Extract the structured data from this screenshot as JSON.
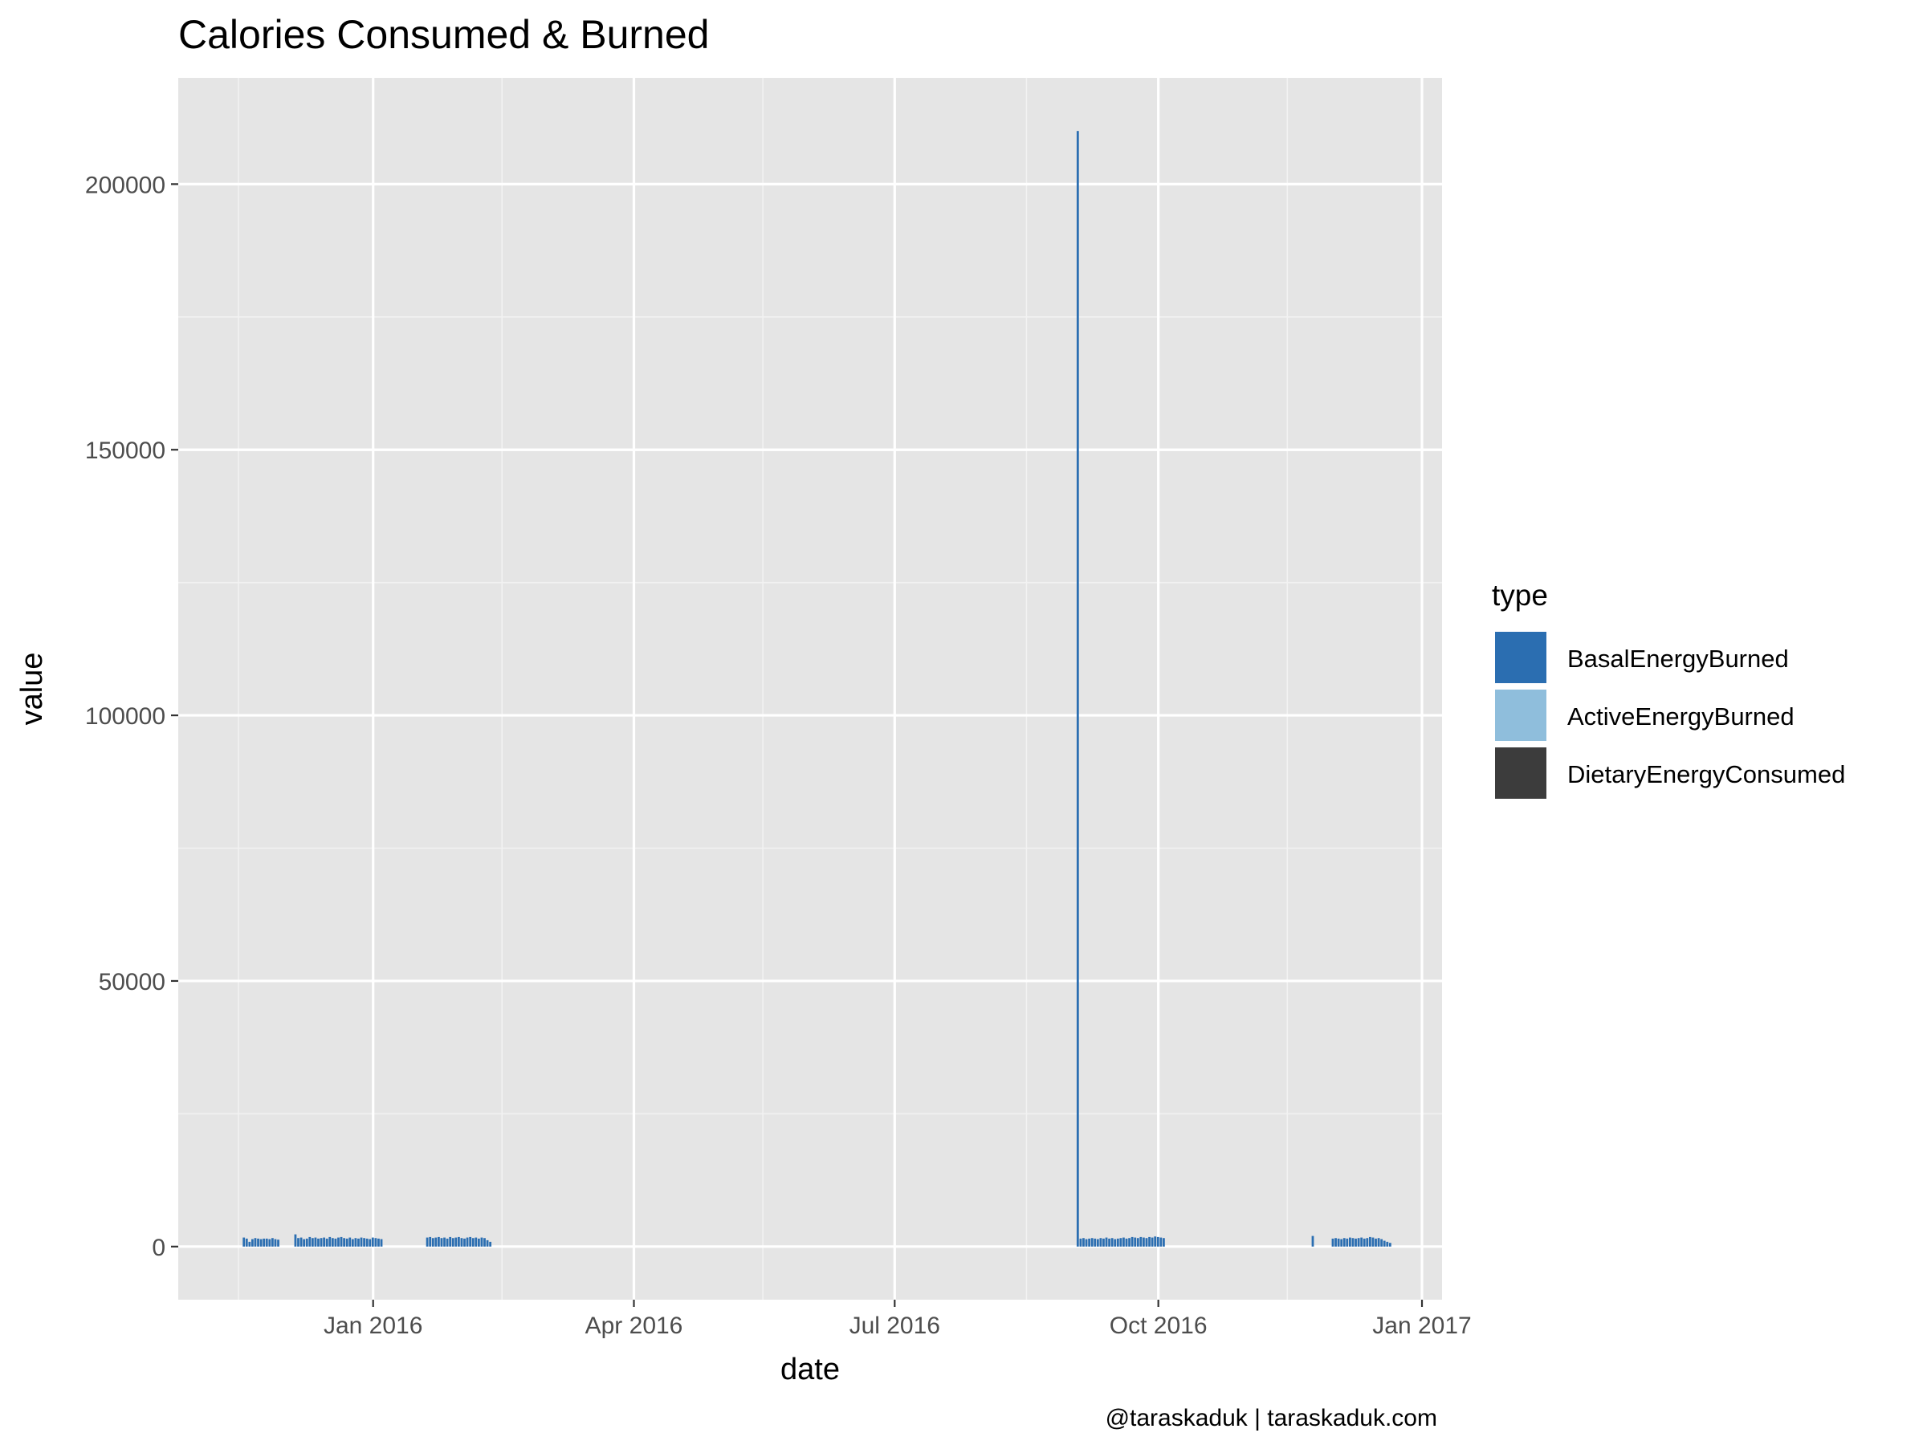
{
  "chart_data": {
    "type": "bar",
    "title": "Calories Consumed & Burned",
    "xlabel": "date",
    "ylabel": "value",
    "caption": "@taraskaduk | taraskaduk.com",
    "x_ticks": [
      {
        "date": "2016-01-01",
        "label": "Jan 2016"
      },
      {
        "date": "2016-04-01",
        "label": "Apr 2016"
      },
      {
        "date": "2016-07-01",
        "label": "Jul 2016"
      },
      {
        "date": "2016-10-01",
        "label": "Oct 2016"
      },
      {
        "date": "2017-01-01",
        "label": "Jan 2017"
      }
    ],
    "x_minor_ticks": [
      "2015-11-15",
      "2016-02-15",
      "2016-05-16",
      "2016-08-16",
      "2016-11-15"
    ],
    "xlim": [
      "2015-10-25",
      "2017-01-08"
    ],
    "y_ticks": [
      0,
      50000,
      100000,
      150000,
      200000
    ],
    "y_tick_labels": [
      "0",
      "50000",
      "100000",
      "150000",
      "200000"
    ],
    "y_minor_ticks": [
      25000,
      75000,
      125000,
      175000
    ],
    "ylim": [
      -10000,
      220000
    ],
    "grid": true,
    "legend": {
      "title": "type",
      "position": "right",
      "entries": [
        {
          "name": "BasalEnergyBurned",
          "color": "#2b6eb1"
        },
        {
          "name": "ActiveEnergyBurned",
          "color": "#8fbedc"
        },
        {
          "name": "DietaryEnergyConsumed",
          "color": "#3c3c3c"
        }
      ]
    },
    "colors": {
      "panel": "#e5e5e5",
      "grid": "#ffffff",
      "basal": "#2b6eb1"
    },
    "series": [
      {
        "name": "BasalEnergyBurned",
        "segments": [
          {
            "start": "2015-11-17",
            "values": [
              1700,
              1500,
              900,
              1400,
              1600,
              1500,
              1400,
              1500,
              1500,
              1400,
              1600,
              1400,
              1300
            ]
          },
          {
            "start": "2015-12-05",
            "values": [
              2300,
              1600,
              1700,
              1400,
              1500,
              1800,
              1600,
              1700,
              1500,
              1600,
              1700,
              1500,
              1800,
              1600,
              1500,
              1700,
              1800,
              1600,
              1500,
              1700,
              1400,
              1600,
              1500,
              1700,
              1600,
              1500,
              1400,
              1700,
              1600,
              1500,
              1400
            ]
          },
          {
            "start": "2016-01-20",
            "values": [
              1700,
              1800,
              1600,
              1700,
              1800,
              1600,
              1700,
              1500,
              1800,
              1600,
              1700,
              1800,
              1600,
              1500,
              1700,
              1800,
              1600,
              1700,
              1500,
              1700,
              1600,
              1200,
              900
            ]
          },
          {
            "start": "2016-09-03",
            "values": [
              210000
            ]
          },
          {
            "start": "2016-09-04",
            "values": [
              1500,
              1600,
              1400,
              1500,
              1600,
              1500,
              1400,
              1600,
              1500,
              1700,
              1500,
              1600,
              1400,
              1500,
              1600,
              1700,
              1500,
              1600,
              1800,
              1700,
              1600,
              1800,
              1700,
              1600,
              1800,
              1700,
              1900,
              1800,
              1700,
              1600
            ]
          },
          {
            "start": "2016-11-24",
            "values": [
              2000
            ]
          },
          {
            "start": "2016-12-01",
            "values": [
              1500,
              1600,
              1500,
              1400,
              1600,
              1500,
              1700,
              1600,
              1500,
              1600,
              1700,
              1500,
              1600,
              1800,
              1700,
              1500,
              1600,
              1400,
              1100,
              900,
              700
            ]
          }
        ]
      }
    ]
  }
}
